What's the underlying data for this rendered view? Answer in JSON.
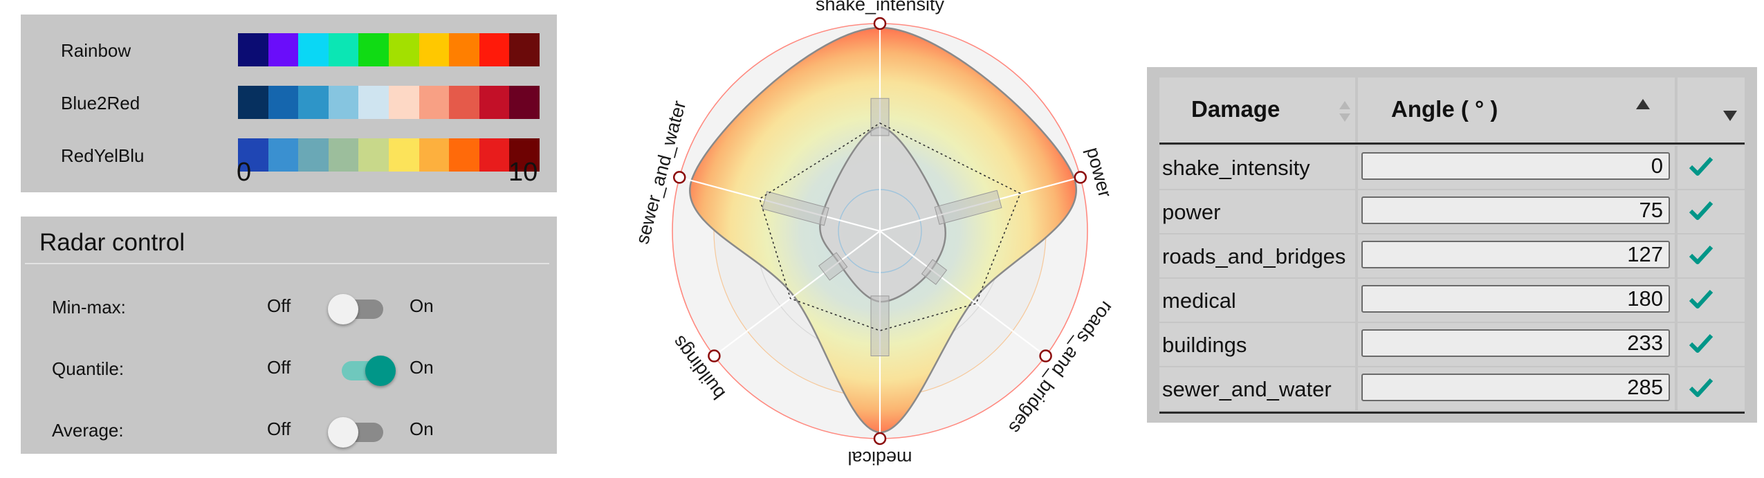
{
  "color_scales": {
    "items": [
      {
        "name": "Rainbow",
        "colors": [
          "#0b0c73",
          "#6a0dfa",
          "#0ad7f5",
          "#0be6b4",
          "#10db14",
          "#a3e000",
          "#ffc800",
          "#ff7f00",
          "#ff1a0a",
          "#6b0a0a"
        ]
      },
      {
        "name": "Blue2Red",
        "colors": [
          "#06305f",
          "#1566ae",
          "#2e95c8",
          "#86c5e0",
          "#cfe4f0",
          "#fdd8c5",
          "#f8a084",
          "#e55a4a",
          "#c31028",
          "#6b0022"
        ]
      },
      {
        "name": "RedYelBlu",
        "colors": [
          "#1f46b4",
          "#3a90d0",
          "#6aa8b6",
          "#9cbe9c",
          "#c8d88a",
          "#fce35a",
          "#fdb03e",
          "#ff6a0a",
          "#e81c1c",
          "#6e0202"
        ]
      }
    ],
    "min_label": "0",
    "max_label": "10"
  },
  "radar_control": {
    "title": "Radar control",
    "off_label": "Off",
    "on_label": "On",
    "toggles": [
      {
        "label": "Min-max:",
        "on": false
      },
      {
        "label": "Quantile:",
        "on": true
      },
      {
        "label": "Average:",
        "on": false
      }
    ]
  },
  "radar_chart": {
    "axes": [
      {
        "label": "shake_intensity",
        "angle": 0
      },
      {
        "label": "power",
        "angle": 75
      },
      {
        "label": "roads_and_bridges",
        "angle": 127
      },
      {
        "label": "medical",
        "angle": 180
      },
      {
        "label": "buildings",
        "angle": 233
      },
      {
        "label": "sewer_and_water",
        "angle": 285
      }
    ],
    "max_value": 10,
    "max_shape": [
      9.8,
      9.7,
      5.6,
      9.7,
      5.2,
      9.4
    ],
    "min_shape": [
      5.0,
      3.1,
      3.1,
      3.4,
      2.5,
      2.9
    ],
    "average_shape": [
      5.2,
      7.0,
      5.8,
      4.8,
      5.4,
      6.0
    ],
    "colors": {
      "accent": "#8b0a0a",
      "outer_ring": "#ff8a80"
    }
  },
  "damage_table": {
    "headers": {
      "name": "Damage",
      "angle": "Angle ( ° )"
    },
    "rows": [
      {
        "name": "shake_intensity",
        "angle": "0"
      },
      {
        "name": "power",
        "angle": "75"
      },
      {
        "name": "roads_and_bridges",
        "angle": "127"
      },
      {
        "name": "medical",
        "angle": "180"
      },
      {
        "name": "buildings",
        "angle": "233"
      },
      {
        "name": "sewer_and_water",
        "angle": "285"
      }
    ],
    "check_color": "#009688"
  }
}
